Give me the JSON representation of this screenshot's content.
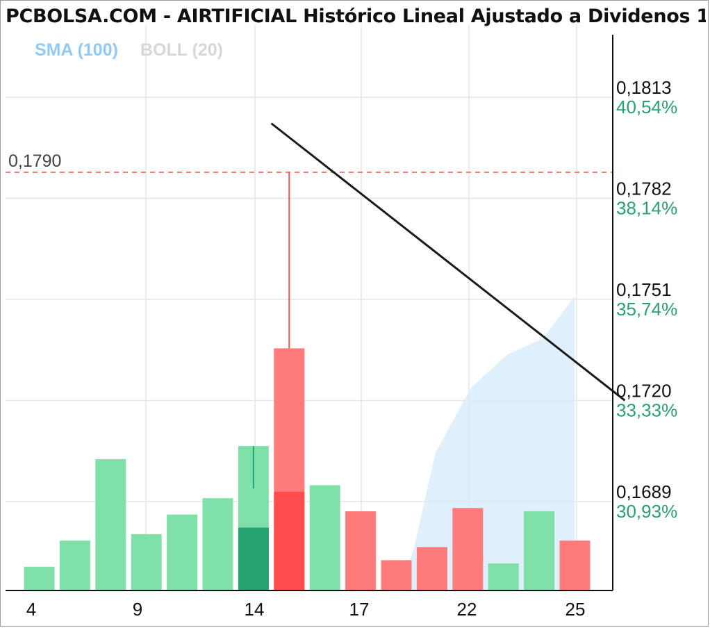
{
  "chart_data": {
    "type": "bar",
    "title": "PCBOLSA.COM - AIRTIFICIAL Histórico Lineal Ajustado a Dividenos 1",
    "legend": [
      {
        "name": "SMA (100)",
        "color": "#90caf9"
      },
      {
        "name": "BOLL (20)",
        "color": "#d7d7d7"
      }
    ],
    "x_tick_labels": [
      "4",
      "9",
      "14",
      "17",
      "22",
      "25"
    ],
    "y_ticks": [
      {
        "value": 0.1813,
        "label": "0,1813",
        "pct": "40,54%"
      },
      {
        "value": 0.1782,
        "label": "0,1782",
        "pct": "38,14%"
      },
      {
        "value": 0.1751,
        "label": "0,1751",
        "pct": "35,74%"
      },
      {
        "value": 0.172,
        "label": "0,1720",
        "pct": "33,33%"
      },
      {
        "value": 0.1689,
        "label": "0,1689",
        "pct": "30,93%"
      }
    ],
    "ylim": [
      0.16617,
      0.18322
    ],
    "reference_line": {
      "value": 0.179,
      "label": "0,1790",
      "color": "#ef5350"
    },
    "bars": [
      {
        "value": 0.1669,
        "color": "green"
      },
      {
        "value": 0.1677,
        "color": "green"
      },
      {
        "value": 0.1702,
        "color": "green"
      },
      {
        "value": 0.1679,
        "color": "green"
      },
      {
        "value": 0.1685,
        "color": "green"
      },
      {
        "value": 0.169,
        "color": "green"
      },
      {
        "value": 0.1706,
        "color": "green",
        "highlight_value": 0.1681,
        "wick_value": 0.1693
      },
      {
        "value": 0.1736,
        "color": "red",
        "highlight_value": 0.1692,
        "wick_value": 0.179
      },
      {
        "value": 0.1694,
        "color": "green"
      },
      {
        "value": 0.1686,
        "color": "red"
      },
      {
        "value": 0.1671,
        "color": "red"
      },
      {
        "value": 0.1675,
        "color": "red"
      },
      {
        "value": 0.1687,
        "color": "red"
      },
      {
        "value": 0.167,
        "color": "green"
      },
      {
        "value": 0.1686,
        "color": "green"
      },
      {
        "value": 0.1677,
        "color": "red"
      }
    ],
    "trend_line": {
      "start": {
        "bar": 6.5,
        "value": 0.1805
      },
      "end": {
        "bar": 16.4,
        "value": 0.172
      }
    },
    "boll_area": [
      {
        "bar": 10.1,
        "value": 0.16617
      },
      {
        "bar": 10.5,
        "value": 0.1675
      },
      {
        "bar": 11.1,
        "value": 0.1704
      },
      {
        "bar": 12.1,
        "value": 0.1724
      },
      {
        "bar": 13.1,
        "value": 0.1734
      },
      {
        "bar": 14.1,
        "value": 0.1739
      },
      {
        "bar": 15.0,
        "value": 0.1752
      }
    ],
    "colors": {
      "green": "#7fe0aa",
      "green_dark": "#26a271",
      "red": "#ff7b7b",
      "red_dark": "#ff4c4c",
      "boll": "#d4eafb",
      "grid": "#e6e6e6",
      "pct": "#26a271"
    }
  }
}
